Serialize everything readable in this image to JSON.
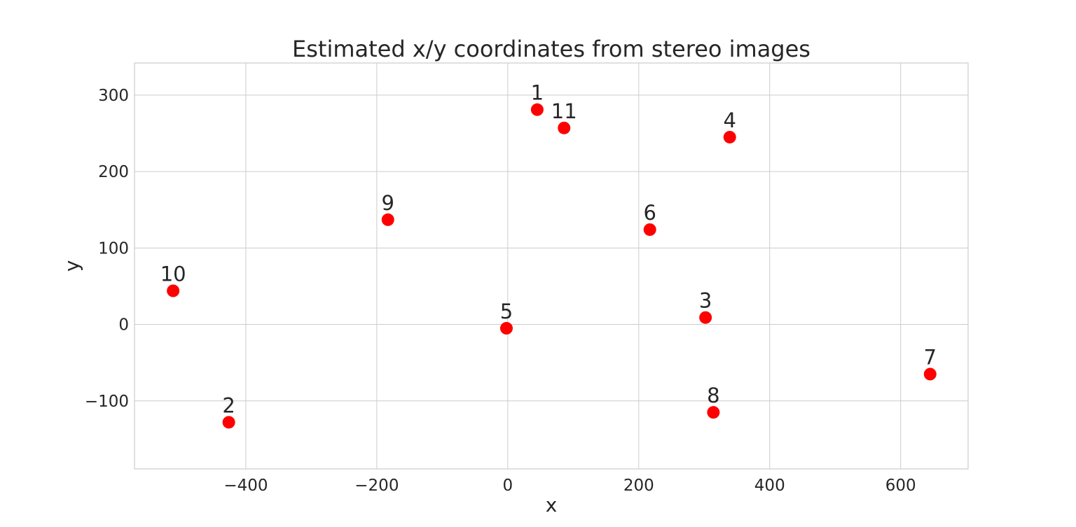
{
  "chart_data": {
    "type": "scatter",
    "title": "Estimated x/y coordinates from stereo images",
    "xlabel": "x",
    "ylabel": "y",
    "xlim": [
      -570,
      703
    ],
    "ylim": [
      -189,
      342
    ],
    "xticks": [
      -400,
      -200,
      0,
      200,
      400,
      600
    ],
    "yticks": [
      -100,
      0,
      100,
      200,
      300
    ],
    "grid": true,
    "marker_color": "#ff0000",
    "points": [
      {
        "label": "1",
        "x": 45,
        "y": 281
      },
      {
        "label": "2",
        "x": -426,
        "y": -128
      },
      {
        "label": "3",
        "x": 302,
        "y": 9
      },
      {
        "label": "4",
        "x": 339,
        "y": 245
      },
      {
        "label": "5",
        "x": -2,
        "y": -5
      },
      {
        "label": "6",
        "x": 217,
        "y": 124
      },
      {
        "label": "7",
        "x": 645,
        "y": -65
      },
      {
        "label": "8",
        "x": 314,
        "y": -115
      },
      {
        "label": "9",
        "x": -183,
        "y": 137
      },
      {
        "label": "10",
        "x": -511,
        "y": 44
      },
      {
        "label": "11",
        "x": 86,
        "y": 257
      }
    ]
  }
}
